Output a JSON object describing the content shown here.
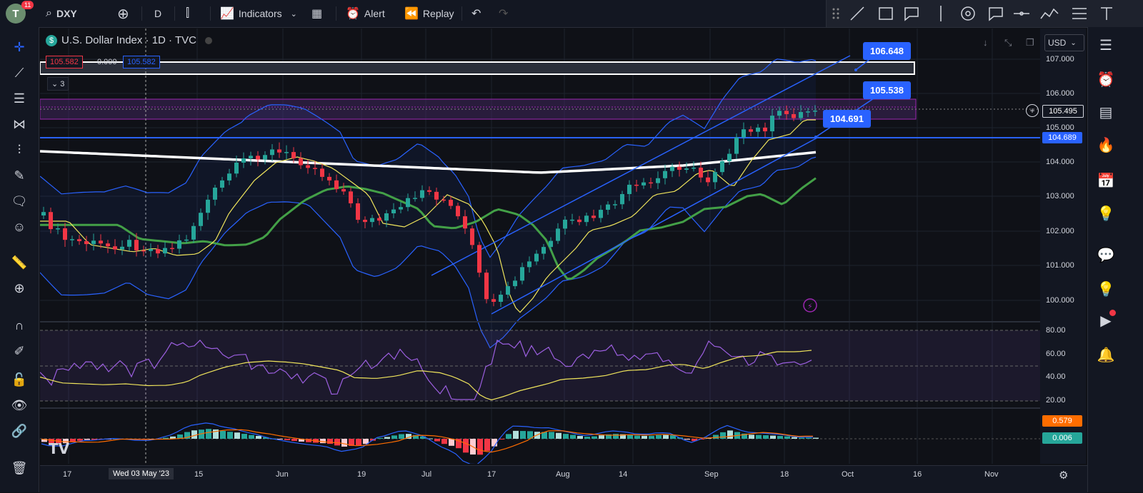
{
  "header": {
    "badge": "11",
    "logo_letter": "T",
    "symbol": "DXY",
    "interval": "D",
    "indicators": "Indicators",
    "alert": "Alert",
    "replay": "Replay"
  },
  "legend": {
    "title": "U.S. Dollar Index · 1D · TVC",
    "sell": "105.582",
    "spread": "0.000",
    "buy": "105.582",
    "indicators_count": "3"
  },
  "callouts": {
    "c1": "106.648",
    "c2": "105.538",
    "c3": "104.691"
  },
  "price_axis": {
    "currency": "USD",
    "ticks": [
      "107.000",
      "106.000",
      "105.000",
      "104.000",
      "103.000",
      "102.000",
      "101.000",
      "100.000"
    ],
    "current": "105.495",
    "hline": "104.689",
    "rsi_ticks": [
      "80.00",
      "60.00",
      "40.00",
      "20.00"
    ],
    "macd_1": "0.579",
    "macd_2": "0.006"
  },
  "time_axis": [
    "17",
    "Wed 03 May '23",
    "15",
    "Jun",
    "19",
    "Jul",
    "17",
    "Aug",
    "14",
    "Sep",
    "18",
    "Oct",
    "16",
    "Nov"
  ],
  "colors": {
    "up": "#26a69a",
    "down": "#f23645",
    "blue": "#2962ff",
    "yellow": "#f0e55c",
    "green": "#43a047",
    "rsi": "#9c5fe0"
  }
}
